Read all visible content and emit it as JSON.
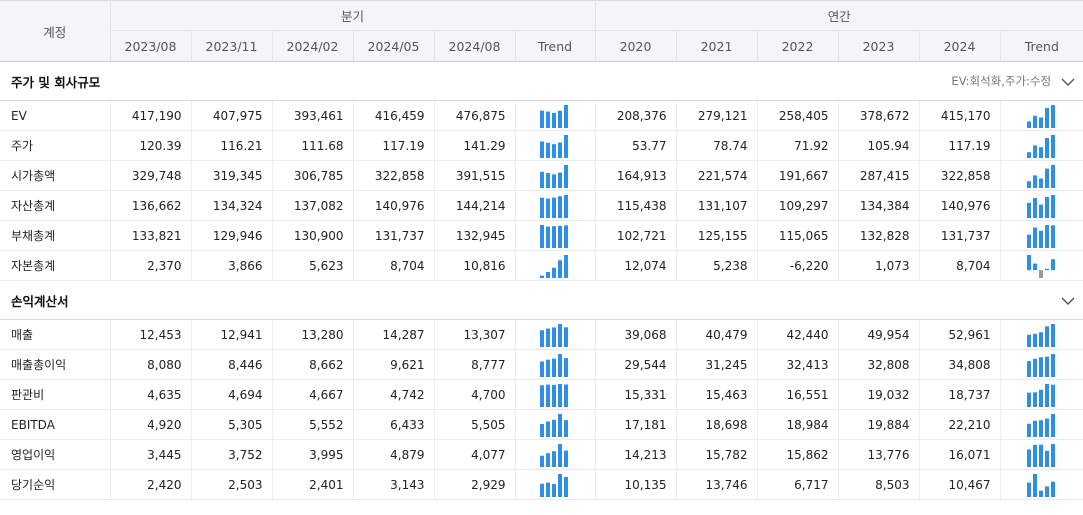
{
  "header": {
    "account_label": "계정",
    "group_quarterly": "분기",
    "group_annual": "연간",
    "quarter_cols": [
      "2023/08",
      "2023/11",
      "2024/02",
      "2024/05",
      "2024/08"
    ],
    "annual_cols": [
      "2020",
      "2021",
      "2022",
      "2023",
      "2024"
    ],
    "trend_label": "Trend"
  },
  "colors": {
    "bar_positive": "#2f8ee6",
    "bar_negative": "#9a9a9a",
    "header_bg": "#f4f5f7"
  },
  "sections": [
    {
      "title": "주가 및 회사규모",
      "note": "EV:회석화,주가:수정",
      "icon": "chevron-down-icon",
      "rows": [
        {
          "name": "EV",
          "q": [
            "417,190",
            "407,975",
            "393,461",
            "416,459",
            "476,875"
          ],
          "a": [
            "208,376",
            "279,121",
            "258,405",
            "378,672",
            "415,170"
          ]
        },
        {
          "name": "주가",
          "q": [
            "120.39",
            "116.21",
            "111.68",
            "117.19",
            "141.29"
          ],
          "a": [
            "53.77",
            "78.74",
            "71.92",
            "105.94",
            "117.19"
          ]
        },
        {
          "name": "시가총액",
          "q": [
            "329,748",
            "319,345",
            "306,785",
            "322,858",
            "391,515"
          ],
          "a": [
            "164,913",
            "221,574",
            "191,667",
            "287,415",
            "322,858"
          ]
        },
        {
          "name": "자산총계",
          "q": [
            "136,662",
            "134,324",
            "137,082",
            "140,976",
            "144,214"
          ],
          "a": [
            "115,438",
            "131,107",
            "109,297",
            "134,384",
            "140,976"
          ]
        },
        {
          "name": "부채총계",
          "q": [
            "133,821",
            "129,946",
            "130,900",
            "131,737",
            "132,945"
          ],
          "a": [
            "102,721",
            "125,155",
            "115,065",
            "132,828",
            "131,737"
          ]
        },
        {
          "name": "자본총계",
          "q": [
            "2,370",
            "3,866",
            "5,623",
            "8,704",
            "10,816"
          ],
          "a": [
            "12,074",
            "5,238",
            "-6,220",
            "1,073",
            "8,704"
          ]
        }
      ]
    },
    {
      "title": "손익계산서",
      "note": "",
      "icon": "chevron-down-icon",
      "rows": [
        {
          "name": "매출",
          "q": [
            "12,453",
            "12,941",
            "13,280",
            "14,287",
            "13,307"
          ],
          "a": [
            "39,068",
            "40,479",
            "42,440",
            "49,954",
            "52,961"
          ]
        },
        {
          "name": "매출총이익",
          "q": [
            "8,080",
            "8,446",
            "8,662",
            "9,621",
            "8,777"
          ],
          "a": [
            "29,544",
            "31,245",
            "32,413",
            "32,808",
            "34,808"
          ]
        },
        {
          "name": "판관비",
          "q": [
            "4,635",
            "4,694",
            "4,667",
            "4,742",
            "4,700"
          ],
          "a": [
            "15,331",
            "15,463",
            "16,551",
            "19,032",
            "18,737"
          ]
        },
        {
          "name": "EBITDA",
          "q": [
            "4,920",
            "5,305",
            "5,552",
            "6,433",
            "5,505"
          ],
          "a": [
            "17,181",
            "18,698",
            "18,984",
            "19,884",
            "22,210"
          ]
        },
        {
          "name": "영업이익",
          "q": [
            "3,445",
            "3,752",
            "3,995",
            "4,879",
            "4,077"
          ],
          "a": [
            "14,213",
            "15,782",
            "15,862",
            "13,776",
            "16,071"
          ]
        },
        {
          "name": "당기순익",
          "q": [
            "2,420",
            "2,503",
            "2,401",
            "3,143",
            "2,929"
          ],
          "a": [
            "10,135",
            "13,746",
            "6,717",
            "8,503",
            "10,467"
          ]
        }
      ]
    }
  ]
}
